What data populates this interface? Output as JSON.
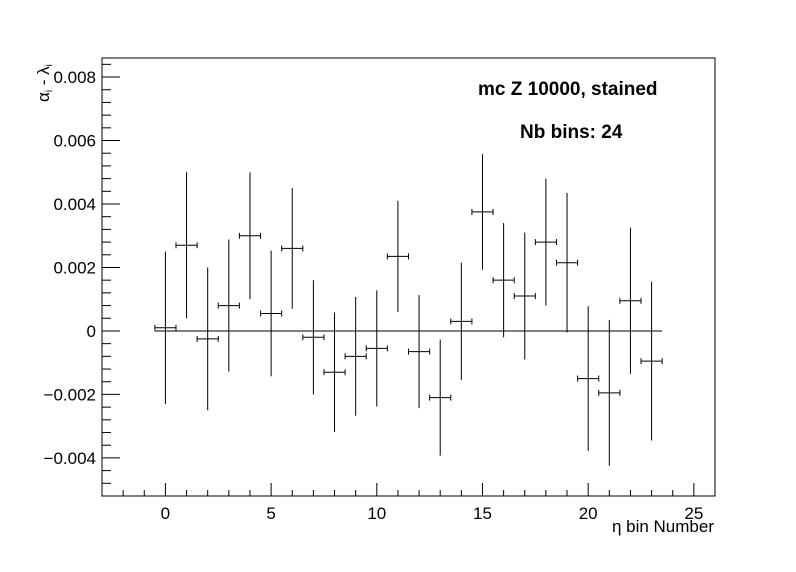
{
  "chart_data": {
    "type": "scatter",
    "title": "",
    "annotations": [
      "mc Z 10000, stained",
      "Nb bins: 24"
    ],
    "xlabel": "η bin Number",
    "ylabel": {
      "alpha": "α",
      "alpha_sub": "i",
      "sep": " - ",
      "lambda": "λ",
      "lambda_sub": "i"
    },
    "xlim": [
      -3,
      26
    ],
    "ylim": [
      -0.0052,
      0.0086
    ],
    "x_ticks": [
      0,
      5,
      10,
      15,
      20,
      25
    ],
    "x_tick_labels": [
      "0",
      "5",
      "10",
      "15",
      "20",
      "25"
    ],
    "y_ticks": [
      -0.004,
      -0.002,
      0,
      0.002,
      0.004,
      0.006,
      0.008
    ],
    "y_tick_labels": [
      "−0.004",
      "−0.002",
      "0",
      "0.002",
      "0.004",
      "0.006",
      "0.008"
    ],
    "reference_line": {
      "y": 0,
      "x_from": -0.5,
      "x_to": 23.5
    },
    "grid": false,
    "legend": "none",
    "x_error": 0.5,
    "series": [
      {
        "points": [
          {
            "x": 0,
            "y": 0.0001,
            "err": 0.0024
          },
          {
            "x": 1,
            "y": 0.0027,
            "err": 0.0023
          },
          {
            "x": 2,
            "y": -0.00025,
            "err": 0.00225
          },
          {
            "x": 3,
            "y": 0.0008,
            "err": 0.00208
          },
          {
            "x": 4,
            "y": 0.003,
            "err": 0.002
          },
          {
            "x": 5,
            "y": 0.00055,
            "err": 0.00198
          },
          {
            "x": 6,
            "y": 0.0026,
            "err": 0.0019
          },
          {
            "x": 7,
            "y": -0.0002,
            "err": 0.0018
          },
          {
            "x": 8,
            "y": -0.0013,
            "err": 0.00188
          },
          {
            "x": 9,
            "y": -0.0008,
            "err": 0.00187
          },
          {
            "x": 10,
            "y": -0.00055,
            "err": 0.00183
          },
          {
            "x": 11,
            "y": 0.00235,
            "err": 0.00175
          },
          {
            "x": 12,
            "y": -0.00065,
            "err": 0.00178
          },
          {
            "x": 13,
            "y": -0.0021,
            "err": 0.00183
          },
          {
            "x": 14,
            "y": 0.0003,
            "err": 0.00185
          },
          {
            "x": 15,
            "y": 0.00375,
            "err": 0.00182
          },
          {
            "x": 16,
            "y": 0.0016,
            "err": 0.0018
          },
          {
            "x": 17,
            "y": 0.0011,
            "err": 0.002
          },
          {
            "x": 18,
            "y": 0.0028,
            "err": 0.002
          },
          {
            "x": 19,
            "y": 0.00215,
            "err": 0.0022
          },
          {
            "x": 20,
            "y": -0.0015,
            "err": 0.00228
          },
          {
            "x": 21,
            "y": -0.00195,
            "err": 0.0023
          },
          {
            "x": 22,
            "y": 0.00095,
            "err": 0.0023
          },
          {
            "x": 23,
            "y": -0.00095,
            "err": 0.0025
          }
        ]
      }
    ]
  }
}
